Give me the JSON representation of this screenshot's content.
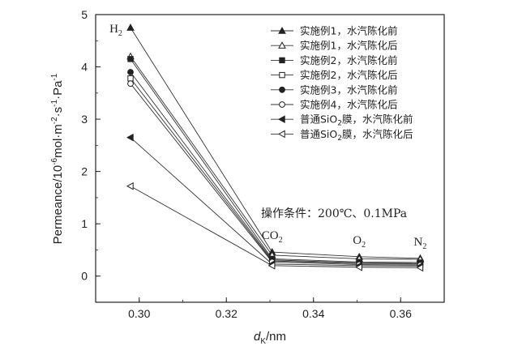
{
  "chart_data": {
    "type": "line",
    "x": [
      0.298,
      0.3305,
      0.3505,
      0.3645
    ],
    "xlim": [
      0.29,
      0.37
    ],
    "ylim": [
      -0.5,
      5
    ],
    "xticks": [
      "0.30",
      "0.32",
      "0.34",
      "0.36"
    ],
    "yticks": [
      "0",
      "1",
      "2",
      "3",
      "4",
      "5"
    ],
    "xlabel": {
      "main": "d",
      "sub": "K",
      "unit": "/nm"
    },
    "ylabel": {
      "prefix": "Permeance/10",
      "exp": "-6",
      "unit": "mol·m",
      "exp2": "-2",
      "mid": "·s",
      "exp3": "-1",
      "end": "·Pa",
      "exp4": "-1"
    },
    "point_labels": [
      {
        "main": "H",
        "sub": "2",
        "x": 0.298,
        "y": 4.75
      },
      {
        "main": "CO",
        "sub": "2",
        "x": 0.3305,
        "y": 0.46
      },
      {
        "main": "O",
        "sub": "2",
        "x": 0.3505,
        "y": 0.37
      },
      {
        "main": "N",
        "sub": "2",
        "x": 0.3645,
        "y": 0.34
      }
    ],
    "annotation": "操作条件：200℃、0.1MPa",
    "legend_position": "top-right",
    "series": [
      {
        "name": "实施例1，水汽陈化前",
        "marker": "triangle-up",
        "filled": true,
        "values": [
          4.75,
          0.46,
          0.37,
          0.34
        ]
      },
      {
        "name": "实施例1，水汽陈化后",
        "marker": "triangle-up",
        "filled": false,
        "values": [
          4.2,
          0.4,
          0.33,
          0.32
        ]
      },
      {
        "name": "实施例2，水汽陈化前",
        "marker": "square",
        "filled": true,
        "values": [
          4.15,
          0.33,
          0.27,
          0.26
        ]
      },
      {
        "name": "实施例2，水汽陈化后",
        "marker": "square",
        "filled": false,
        "values": [
          3.78,
          0.29,
          0.24,
          0.23
        ]
      },
      {
        "name": "实施例3，水汽陈化前",
        "marker": "circle",
        "filled": true,
        "values": [
          3.9,
          0.31,
          0.25,
          0.24
        ]
      },
      {
        "name": "实施例4，水汽陈化后",
        "marker": "circle",
        "filled": false,
        "values": [
          3.68,
          0.27,
          0.22,
          0.21
        ]
      },
      {
        "name": "普通SiO2膜，水汽陈化前",
        "name_parts": [
          "普通SiO",
          "2",
          "膜，水汽陈化前"
        ],
        "marker": "triangle-left",
        "filled": true,
        "values": [
          2.65,
          0.23,
          0.2,
          0.19
        ]
      },
      {
        "name": "普通SiO2膜，水汽陈化后",
        "name_parts": [
          "普通SiO",
          "2",
          "膜，水汽陈化后"
        ],
        "marker": "triangle-left",
        "filled": false,
        "values": [
          1.72,
          0.2,
          0.17,
          0.16
        ]
      }
    ]
  }
}
